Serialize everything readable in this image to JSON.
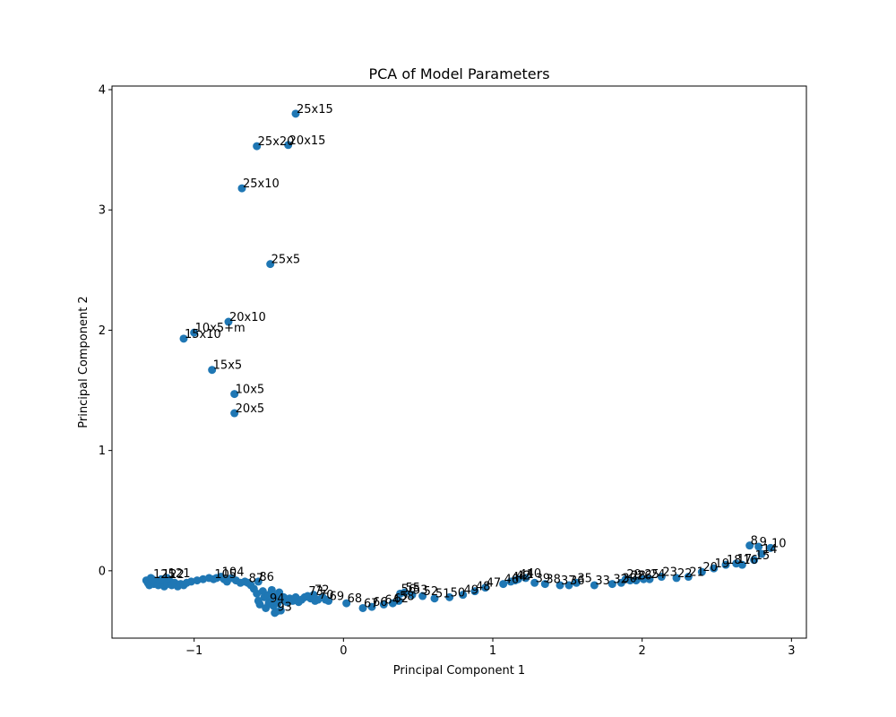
{
  "chart_data": {
    "type": "scatter",
    "title": "PCA of Model Parameters",
    "xlabel": "Principal Component 1",
    "ylabel": "Principal Component 2",
    "xlim": [
      -1.55,
      3.1
    ],
    "ylim": [
      -0.56,
      4.03
    ],
    "xticks": [
      -1,
      0,
      1,
      2,
      3
    ],
    "xtick_labels": [
      "−1",
      "0",
      "1",
      "2",
      "3"
    ],
    "yticks": [
      0,
      1,
      2,
      3,
      4
    ],
    "ytick_labels": [
      "0",
      "1",
      "2",
      "3",
      "4"
    ],
    "grid": false,
    "point_color": "#1f77b4",
    "labeled_points": [
      {
        "x": -0.32,
        "y": 3.8,
        "label": "25x15"
      },
      {
        "x": -0.58,
        "y": 3.53,
        "label": "25x20"
      },
      {
        "x": -0.37,
        "y": 3.54,
        "label": "20x15"
      },
      {
        "x": -0.68,
        "y": 3.18,
        "label": "25x10"
      },
      {
        "x": -0.49,
        "y": 2.55,
        "label": "25x5"
      },
      {
        "x": -0.77,
        "y": 2.07,
        "label": "20x10"
      },
      {
        "x": -1.0,
        "y": 1.98,
        "label": "10x5+m"
      },
      {
        "x": -1.07,
        "y": 1.93,
        "label": "15x10"
      },
      {
        "x": -0.88,
        "y": 1.67,
        "label": "15x5"
      },
      {
        "x": -0.73,
        "y": 1.47,
        "label": "10x5"
      },
      {
        "x": -0.73,
        "y": 1.31,
        "label": "20x5"
      },
      {
        "x": 2.86,
        "y": 0.19,
        "label": "10"
      },
      {
        "x": 2.78,
        "y": 0.2,
        "label": "9"
      },
      {
        "x": 2.72,
        "y": 0.21,
        "label": "8"
      },
      {
        "x": 2.8,
        "y": 0.14,
        "label": "14"
      },
      {
        "x": 2.75,
        "y": 0.09,
        "label": "15"
      },
      {
        "x": 2.67,
        "y": 0.05,
        "label": "16"
      },
      {
        "x": 2.63,
        "y": 0.06,
        "label": "17"
      },
      {
        "x": 2.56,
        "y": 0.05,
        "label": "18"
      },
      {
        "x": 2.48,
        "y": 0.02,
        "label": "19"
      },
      {
        "x": 2.4,
        "y": -0.01,
        "label": "20"
      },
      {
        "x": 2.31,
        "y": -0.05,
        "label": "21"
      },
      {
        "x": 2.23,
        "y": -0.06,
        "label": "22"
      },
      {
        "x": 2.13,
        "y": -0.05,
        "label": "23"
      },
      {
        "x": 2.05,
        "y": -0.07,
        "label": "24"
      },
      {
        "x": 2.01,
        "y": -0.07,
        "label": "25"
      },
      {
        "x": 1.96,
        "y": -0.08,
        "label": "26"
      },
      {
        "x": 1.92,
        "y": -0.08,
        "label": "28"
      },
      {
        "x": 1.89,
        "y": -0.07,
        "label": "29"
      },
      {
        "x": 1.86,
        "y": -0.1,
        "label": "30"
      },
      {
        "x": 1.8,
        "y": -0.11,
        "label": "32"
      },
      {
        "x": 1.68,
        "y": -0.12,
        "label": "33"
      },
      {
        "x": 1.56,
        "y": -0.1,
        "label": "35"
      },
      {
        "x": 1.51,
        "y": -0.12,
        "label": "36"
      },
      {
        "x": 1.45,
        "y": -0.12,
        "label": "37"
      },
      {
        "x": 1.35,
        "y": -0.11,
        "label": "38"
      },
      {
        "x": 1.28,
        "y": -0.1,
        "label": "39"
      },
      {
        "x": 1.22,
        "y": -0.06,
        "label": "40"
      },
      {
        "x": 1.17,
        "y": -0.07,
        "label": "41"
      },
      {
        "x": 1.15,
        "y": -0.08,
        "label": "42"
      },
      {
        "x": 1.12,
        "y": -0.09,
        "label": "44"
      },
      {
        "x": 1.07,
        "y": -0.11,
        "label": "46"
      },
      {
        "x": 0.95,
        "y": -0.14,
        "label": "47"
      },
      {
        "x": 0.88,
        "y": -0.17,
        "label": "48"
      },
      {
        "x": 0.8,
        "y": -0.2,
        "label": "49"
      },
      {
        "x": 0.71,
        "y": -0.22,
        "label": "50"
      },
      {
        "x": 0.61,
        "y": -0.23,
        "label": "51"
      },
      {
        "x": 0.53,
        "y": -0.21,
        "label": "52"
      },
      {
        "x": 0.46,
        "y": -0.2,
        "label": "53"
      },
      {
        "x": 0.41,
        "y": -0.18,
        "label": "55"
      },
      {
        "x": 0.38,
        "y": -0.19,
        "label": "56"
      },
      {
        "x": 0.37,
        "y": -0.25,
        "label": "58"
      },
      {
        "x": 0.33,
        "y": -0.27,
        "label": "62"
      },
      {
        "x": 0.27,
        "y": -0.28,
        "label": "64"
      },
      {
        "x": 0.19,
        "y": -0.3,
        "label": "66"
      },
      {
        "x": 0.13,
        "y": -0.31,
        "label": "67"
      },
      {
        "x": 0.02,
        "y": -0.27,
        "label": "68"
      },
      {
        "x": -0.1,
        "y": -0.25,
        "label": "69"
      },
      {
        "x": -0.17,
        "y": -0.24,
        "label": "70"
      },
      {
        "x": -0.2,
        "y": -0.2,
        "label": "72"
      },
      {
        "x": -0.24,
        "y": -0.21,
        "label": "73"
      },
      {
        "x": -0.57,
        "y": -0.09,
        "label": "86"
      },
      {
        "x": -0.64,
        "y": -0.1,
        "label": "87"
      },
      {
        "x": -0.82,
        "y": -0.05,
        "label": "104"
      },
      {
        "x": -0.87,
        "y": -0.07,
        "label": "105"
      },
      {
        "x": -1.18,
        "y": -0.06,
        "label": "121"
      },
      {
        "x": -1.22,
        "y": -0.07,
        "label": "122"
      },
      {
        "x": -1.28,
        "y": -0.07,
        "label": "125"
      },
      {
        "x": -0.45,
        "y": -0.34,
        "label": "93"
      },
      {
        "x": -0.5,
        "y": -0.27,
        "label": "94"
      }
    ],
    "unlabeled_points": [
      {
        "x": -1.32,
        "y": -0.08
      },
      {
        "x": -1.31,
        "y": -0.1
      },
      {
        "x": -1.3,
        "y": -0.12
      },
      {
        "x": -1.29,
        "y": -0.06
      },
      {
        "x": -1.27,
        "y": -0.11
      },
      {
        "x": -1.26,
        "y": -0.09
      },
      {
        "x": -1.24,
        "y": -0.12
      },
      {
        "x": -1.23,
        "y": -0.08
      },
      {
        "x": -1.21,
        "y": -0.1
      },
      {
        "x": -1.2,
        "y": -0.13
      },
      {
        "x": -1.18,
        "y": -0.11
      },
      {
        "x": -1.16,
        "y": -0.09
      },
      {
        "x": -1.15,
        "y": -0.12
      },
      {
        "x": -1.13,
        "y": -0.1
      },
      {
        "x": -1.11,
        "y": -0.13
      },
      {
        "x": -1.09,
        "y": -0.11
      },
      {
        "x": -1.07,
        "y": -0.12
      },
      {
        "x": -1.05,
        "y": -0.1
      },
      {
        "x": -1.02,
        "y": -0.09
      },
      {
        "x": -0.98,
        "y": -0.08
      },
      {
        "x": -0.94,
        "y": -0.07
      },
      {
        "x": -0.9,
        "y": -0.06
      },
      {
        "x": -0.85,
        "y": -0.06
      },
      {
        "x": -0.8,
        "y": -0.07
      },
      {
        "x": -0.78,
        "y": -0.09
      },
      {
        "x": -0.75,
        "y": -0.06
      },
      {
        "x": -0.72,
        "y": -0.08
      },
      {
        "x": -0.69,
        "y": -0.1
      },
      {
        "x": -0.66,
        "y": -0.09
      },
      {
        "x": -0.62,
        "y": -0.12
      },
      {
        "x": -0.6,
        "y": -0.15
      },
      {
        "x": -0.58,
        "y": -0.19
      },
      {
        "x": -0.57,
        "y": -0.25
      },
      {
        "x": -0.56,
        "y": -0.28
      },
      {
        "x": -0.54,
        "y": -0.17
      },
      {
        "x": -0.53,
        "y": -0.22
      },
      {
        "x": -0.52,
        "y": -0.31
      },
      {
        "x": -0.5,
        "y": -0.2
      },
      {
        "x": -0.49,
        "y": -0.24
      },
      {
        "x": -0.48,
        "y": -0.16
      },
      {
        "x": -0.47,
        "y": -0.29
      },
      {
        "x": -0.46,
        "y": -0.35
      },
      {
        "x": -0.45,
        "y": -0.21
      },
      {
        "x": -0.44,
        "y": -0.27
      },
      {
        "x": -0.43,
        "y": -0.18
      },
      {
        "x": -0.42,
        "y": -0.33
      },
      {
        "x": -0.41,
        "y": -0.24
      },
      {
        "x": -0.4,
        "y": -0.22
      },
      {
        "x": -0.38,
        "y": -0.26
      },
      {
        "x": -0.36,
        "y": -0.23
      },
      {
        "x": -0.34,
        "y": -0.25
      },
      {
        "x": -0.32,
        "y": -0.22
      },
      {
        "x": -0.3,
        "y": -0.26
      },
      {
        "x": -0.28,
        "y": -0.24
      },
      {
        "x": -0.26,
        "y": -0.22
      },
      {
        "x": -0.22,
        "y": -0.23
      },
      {
        "x": -0.19,
        "y": -0.25
      },
      {
        "x": -0.14,
        "y": -0.22
      },
      {
        "x": -0.12,
        "y": -0.24
      }
    ]
  }
}
